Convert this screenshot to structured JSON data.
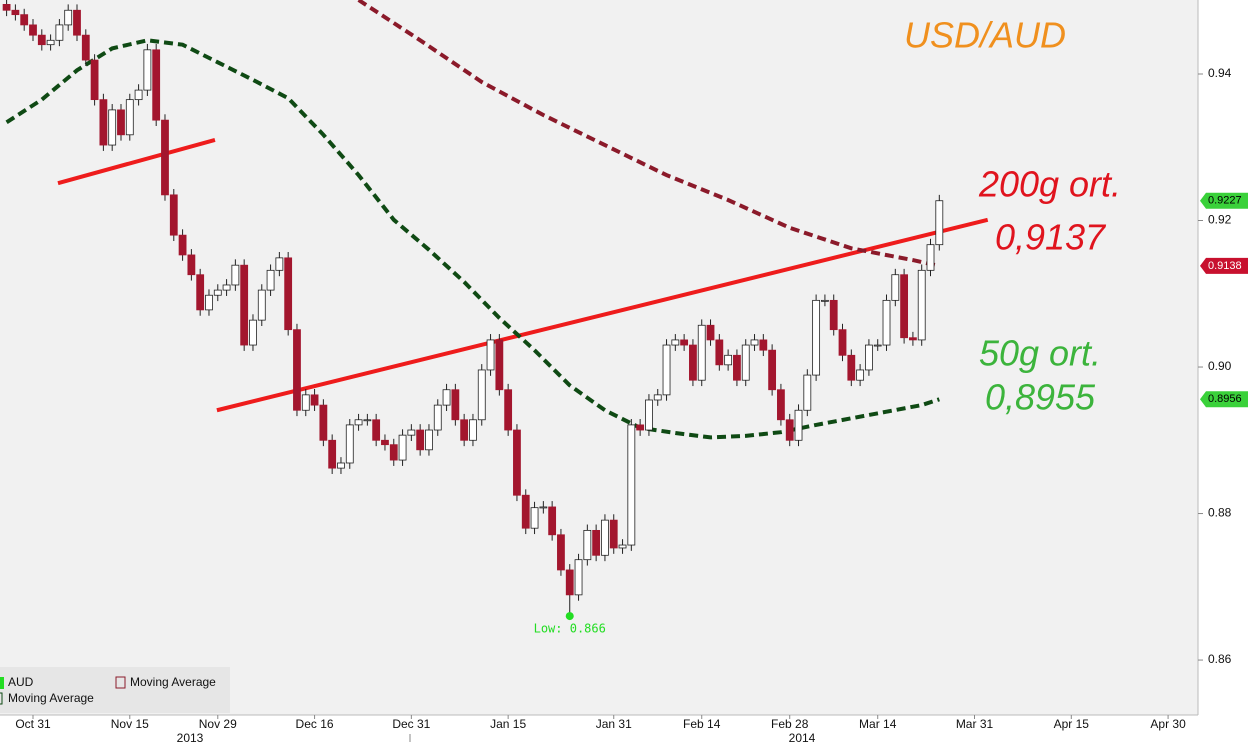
{
  "chart_data": {
    "type": "candlestick",
    "title": "USD/AUD",
    "x": [
      -3,
      -2,
      -1,
      0,
      1,
      2,
      3,
      4,
      5,
      6,
      7,
      8,
      9,
      10,
      11,
      12,
      13,
      14,
      15,
      16,
      17,
      18,
      19,
      20,
      21,
      22,
      23,
      24,
      25,
      26,
      27,
      28,
      29,
      30,
      31,
      32,
      33,
      34,
      35,
      36,
      37,
      38,
      39,
      40,
      41,
      42,
      43,
      44,
      45,
      46,
      47,
      48,
      49,
      50,
      51,
      52,
      53,
      54,
      55,
      56,
      57,
      58,
      59,
      60,
      61,
      62,
      63,
      64,
      65,
      66,
      67,
      68,
      69,
      70,
      71,
      72,
      73,
      74,
      75,
      76,
      77,
      78,
      79,
      80,
      81,
      82,
      83,
      84,
      85,
      86,
      87,
      88,
      89,
      90,
      91,
      92,
      93,
      94,
      95,
      96,
      97,
      98,
      99,
      100,
      101,
      102,
      103
    ],
    "series": [
      {
        "name": "AUD",
        "up_color": "#ffffff",
        "down_color": "#a3162e",
        "legend_color": "#22dd22",
        "last_label": "0.9227",
        "open": [
          0.9495,
          0.9487,
          0.9481,
          0.9467,
          0.9453,
          0.944,
          0.9446,
          0.9467,
          0.9487,
          0.9453,
          0.9419,
          0.9365,
          0.9303,
          0.9351,
          0.9317,
          0.9365,
          0.9378,
          0.9433,
          0.9337,
          0.9235,
          0.918,
          0.9153,
          0.9126,
          0.9078,
          0.9098,
          0.9105,
          0.9112,
          0.9139,
          0.903,
          0.9064,
          0.9105,
          0.9132,
          0.9149,
          0.9051,
          0.8941,
          0.8962,
          0.8948,
          0.89,
          0.8862,
          0.8869,
          0.8921,
          0.8928,
          0.8928,
          0.89,
          0.8894,
          0.8873,
          0.8907,
          0.8914,
          0.8887,
          0.8914,
          0.8948,
          0.8969,
          0.8928,
          0.89,
          0.8928,
          0.8996,
          0.9037,
          0.8969,
          0.8914,
          0.8825,
          0.878,
          0.8808,
          0.8809,
          0.8771,
          0.8723,
          0.8689,
          0.8737,
          0.8777,
          0.8743,
          0.8791,
          0.8753,
          0.8757,
          0.8921,
          0.8914,
          0.8955,
          0.8962,
          0.903,
          0.9037,
          0.903,
          0.8982,
          0.9057,
          0.9037,
          0.9003,
          0.9016,
          0.8982,
          0.903,
          0.9037,
          0.9023,
          0.8969,
          0.8928,
          0.89,
          0.8941,
          0.8989,
          0.9091,
          0.9091,
          0.9051,
          0.9016,
          0.8982,
          0.8996,
          0.903,
          0.903,
          0.9091,
          0.9126,
          0.904,
          0.9037,
          0.9132,
          0.9167
        ],
        "high": [
          0.9503,
          0.9495,
          0.9489,
          0.9475,
          0.9461,
          0.9454,
          0.9475,
          0.9495,
          0.9495,
          0.9461,
          0.9427,
          0.9373,
          0.9359,
          0.9359,
          0.9373,
          0.9386,
          0.9441,
          0.9441,
          0.9345,
          0.9243,
          0.9188,
          0.9161,
          0.9134,
          0.9106,
          0.9113,
          0.912,
          0.9147,
          0.9147,
          0.9072,
          0.9113,
          0.914,
          0.9157,
          0.9157,
          0.9059,
          0.897,
          0.897,
          0.8956,
          0.8908,
          0.8877,
          0.8929,
          0.8936,
          0.8936,
          0.8936,
          0.8908,
          0.8902,
          0.8915,
          0.8922,
          0.8922,
          0.8922,
          0.8956,
          0.8977,
          0.8977,
          0.8936,
          0.8936,
          0.9004,
          0.9045,
          0.9045,
          0.8977,
          0.8922,
          0.8833,
          0.8816,
          0.8817,
          0.8817,
          0.8779,
          0.8731,
          0.8745,
          0.8785,
          0.8785,
          0.8799,
          0.8799,
          0.8765,
          0.8929,
          0.8929,
          0.8963,
          0.897,
          0.9038,
          0.9045,
          0.9045,
          0.9038,
          0.9065,
          0.9065,
          0.9045,
          0.9024,
          0.9024,
          0.9038,
          0.9045,
          0.9045,
          0.9031,
          0.8977,
          0.8936,
          0.8949,
          0.8997,
          0.9099,
          0.9099,
          0.9099,
          0.9059,
          0.9024,
          0.9004,
          0.9038,
          0.9038,
          0.9099,
          0.9134,
          0.9134,
          0.9048,
          0.914,
          0.9175,
          0.9235
        ],
        "low": [
          0.9479,
          0.9473,
          0.9459,
          0.9445,
          0.9432,
          0.9432,
          0.9438,
          0.9459,
          0.9445,
          0.9411,
          0.9357,
          0.9295,
          0.9295,
          0.9309,
          0.9309,
          0.9357,
          0.937,
          0.9329,
          0.9227,
          0.9172,
          0.9145,
          0.9118,
          0.907,
          0.907,
          0.909,
          0.9097,
          0.9104,
          0.9022,
          0.9022,
          0.9056,
          0.9097,
          0.9124,
          0.9043,
          0.8933,
          0.8933,
          0.894,
          0.8892,
          0.8854,
          0.8854,
          0.8861,
          0.8913,
          0.892,
          0.8892,
          0.8886,
          0.8865,
          0.8865,
          0.8899,
          0.8879,
          0.8879,
          0.8906,
          0.894,
          0.892,
          0.8892,
          0.8892,
          0.892,
          0.8988,
          0.8961,
          0.8906,
          0.8817,
          0.8772,
          0.8772,
          0.88,
          0.8763,
          0.8715,
          0.866,
          0.8681,
          0.8729,
          0.8735,
          0.8735,
          0.8745,
          0.8745,
          0.8749,
          0.8906,
          0.8906,
          0.8947,
          0.8954,
          0.9022,
          0.9022,
          0.8974,
          0.8974,
          0.9029,
          0.8995,
          0.8995,
          0.8974,
          0.8974,
          0.9022,
          0.9015,
          0.8961,
          0.892,
          0.8892,
          0.8892,
          0.8933,
          0.8981,
          0.9083,
          0.9043,
          0.9008,
          0.8974,
          0.8974,
          0.8988,
          0.9022,
          0.9022,
          0.9083,
          0.9032,
          0.9029,
          0.9029,
          0.9124,
          0.9159
        ],
        "close": [
          0.9487,
          0.9481,
          0.9467,
          0.9453,
          0.944,
          0.9446,
          0.9467,
          0.9487,
          0.9453,
          0.9419,
          0.9365,
          0.9303,
          0.9351,
          0.9317,
          0.9365,
          0.9378,
          0.9433,
          0.9337,
          0.9235,
          0.918,
          0.9153,
          0.9126,
          0.9078,
          0.9098,
          0.9105,
          0.9112,
          0.9139,
          0.903,
          0.9064,
          0.9105,
          0.9132,
          0.9149,
          0.9051,
          0.8941,
          0.8962,
          0.8948,
          0.89,
          0.8862,
          0.8869,
          0.8921,
          0.8928,
          0.8928,
          0.89,
          0.8894,
          0.8873,
          0.8907,
          0.8914,
          0.8887,
          0.8914,
          0.8948,
          0.8969,
          0.8928,
          0.89,
          0.8928,
          0.8996,
          0.9037,
          0.8969,
          0.8914,
          0.8825,
          0.878,
          0.8808,
          0.8809,
          0.8771,
          0.8723,
          0.8689,
          0.8737,
          0.8777,
          0.8743,
          0.8791,
          0.8753,
          0.8757,
          0.8921,
          0.8914,
          0.8955,
          0.8962,
          0.903,
          0.9037,
          0.903,
          0.8982,
          0.9057,
          0.9037,
          0.9003,
          0.9016,
          0.8982,
          0.903,
          0.9037,
          0.9023,
          0.8969,
          0.8928,
          0.89,
          0.8941,
          0.8989,
          0.9091,
          0.9091,
          0.9051,
          0.9016,
          0.8982,
          0.8996,
          0.903,
          0.903,
          0.9091,
          0.9126,
          0.904,
          0.9037,
          0.9132,
          0.9167,
          0.9227
        ]
      }
    ],
    "lines": [
      {
        "name": "Moving Average",
        "color": "#0f4a14",
        "label_color": "#3ad13a",
        "last_label": "0.8956",
        "x": [
          -3,
          1,
          5,
          9,
          13,
          17,
          21,
          25,
          29,
          33,
          37,
          41,
          45,
          49,
          53,
          57,
          61,
          65,
          69,
          73,
          77,
          81,
          85,
          89,
          93,
          97,
          101,
          103
        ],
        "values": [
          0.9334,
          0.9365,
          0.9405,
          0.9435,
          0.9446,
          0.944,
          0.9416,
          0.9392,
          0.9367,
          0.9317,
          0.9262,
          0.9201,
          0.916,
          0.9116,
          0.9067,
          0.9023,
          0.8975,
          0.8941,
          0.8917,
          0.891,
          0.8904,
          0.8906,
          0.8911,
          0.8921,
          0.893,
          0.8939,
          0.8948,
          0.8956
        ]
      },
      {
        "name": "Moving Average",
        "color": "#8b1a2a",
        "label_color": "#c8102e",
        "last_label": "0.9138",
        "x": [
          37,
          44,
          51,
          58,
          65,
          72,
          79,
          86,
          93,
          100,
          103
        ],
        "values": [
          0.9501,
          0.9446,
          0.9389,
          0.9344,
          0.9303,
          0.9262,
          0.9228,
          0.919,
          0.9162,
          0.9146,
          0.9138
        ]
      }
    ],
    "trendlines": [
      {
        "color": "#ee1c1c",
        "x": [
          2.84,
          20.68
        ],
        "y": [
          0.9251,
          0.931
        ]
      },
      {
        "color": "#ee1c1c",
        "x": [
          20.9,
          108.5
        ],
        "y": [
          0.8941,
          0.9201
        ]
      }
    ],
    "low_marker": {
      "x": 61,
      "value": 0.866,
      "label": "Low: 0.866",
      "color": "#22dd22"
    },
    "annotations": [
      {
        "text": "200g ort.",
        "value": "0,9137",
        "color": "#e0141e"
      },
      {
        "text": "50g ort.",
        "value": "0,8955",
        "color": "#3cb43c"
      }
    ],
    "title_color": "#f0901e",
    "xlim": [
      -3.75,
      132.4
    ],
    "xticks": [
      {
        "value": 0,
        "label": "Oct 31"
      },
      {
        "value": 11,
        "label": "Nov 15"
      },
      {
        "value": 21,
        "label": "Nov 29"
      },
      {
        "value": 32,
        "label": "Dec 16"
      },
      {
        "value": 43,
        "label": "Dec 31"
      },
      {
        "value": 54,
        "label": "Jan 15"
      },
      {
        "value": 66,
        "label": "Jan 31"
      },
      {
        "value": 76,
        "label": "Feb 14"
      },
      {
        "value": 86,
        "label": "Feb 28"
      },
      {
        "value": 96,
        "label": "Mar 14"
      },
      {
        "value": 107,
        "label": "Mar 31"
      },
      {
        "value": 118,
        "label": "Apr 15"
      },
      {
        "value": 129,
        "label": "Apr 30"
      }
    ],
    "year_labels": [
      "2013",
      "2014"
    ],
    "ylim": [
      0.8525,
      0.9501
    ],
    "yticks": [
      0.86,
      0.88,
      {
        "value": 0.9,
        "label": "0.90"
      },
      0.92,
      0.94
    ],
    "grid": false
  }
}
